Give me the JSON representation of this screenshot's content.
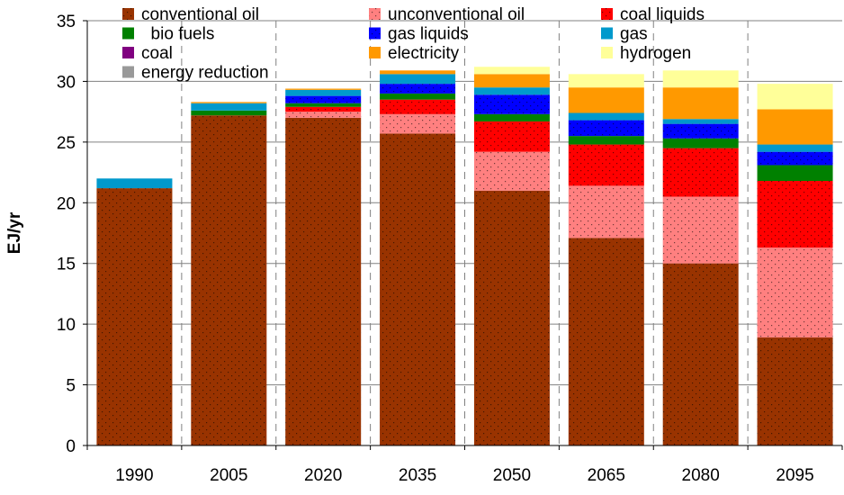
{
  "chart_data": {
    "type": "bar",
    "stacked": true,
    "title": "",
    "xlabel": "",
    "ylabel": "EJ/yr",
    "ylim": [
      0,
      35
    ],
    "yticks": [
      0,
      5,
      10,
      15,
      20,
      25,
      30,
      35
    ],
    "grid": "horizontal",
    "legend_position": "top-left",
    "categories": [
      "1990",
      "2005",
      "2020",
      "2035",
      "2050",
      "2065",
      "2080",
      "2095"
    ],
    "series": [
      {
        "name": "conventional oil",
        "color": "#993300",
        "pattern": "dots",
        "values": [
          21.2,
          27.2,
          27.0,
          25.7,
          21.0,
          17.1,
          15.0,
          8.9
        ]
      },
      {
        "name": "unconventional oil",
        "color": "#ff8080",
        "pattern": "dots",
        "values": [
          0,
          0,
          0.5,
          1.6,
          3.2,
          4.3,
          5.5,
          7.4
        ]
      },
      {
        "name": "coal liquids",
        "color": "#ff0000",
        "pattern": "dots",
        "values": [
          0,
          0,
          0.4,
          1.2,
          2.5,
          3.4,
          4.0,
          5.5
        ]
      },
      {
        "name": "  bio fuels",
        "color": "#008000",
        "values": [
          0,
          0.4,
          0.3,
          0.5,
          0.6,
          0.7,
          0.8,
          1.3
        ]
      },
      {
        "name": "gas liquids",
        "color": "#0000ff",
        "pattern": "dots",
        "values": [
          0,
          0,
          0.6,
          0.8,
          1.6,
          1.3,
          1.2,
          1.1
        ]
      },
      {
        "name": "gas",
        "color": "#0099cc",
        "values": [
          0.8,
          0.6,
          0.5,
          0.8,
          0.6,
          0.6,
          0.4,
          0.6
        ]
      },
      {
        "name": "coal",
        "color": "#800080",
        "values": [
          0,
          0,
          0,
          0,
          0,
          0,
          0,
          0
        ]
      },
      {
        "name": "electricity",
        "color": "#ff9900",
        "values": [
          0,
          0.1,
          0.1,
          0.3,
          1.1,
          2.1,
          2.6,
          2.9
        ]
      },
      {
        "name": "hydrogen",
        "color": "#ffff99",
        "values": [
          0,
          0,
          0,
          0,
          0.6,
          1.1,
          1.4,
          2.1
        ]
      },
      {
        "name": "energy reduction",
        "color": "#999999",
        "values": [
          0,
          0,
          0,
          0,
          0,
          0,
          0,
          0
        ]
      }
    ]
  }
}
